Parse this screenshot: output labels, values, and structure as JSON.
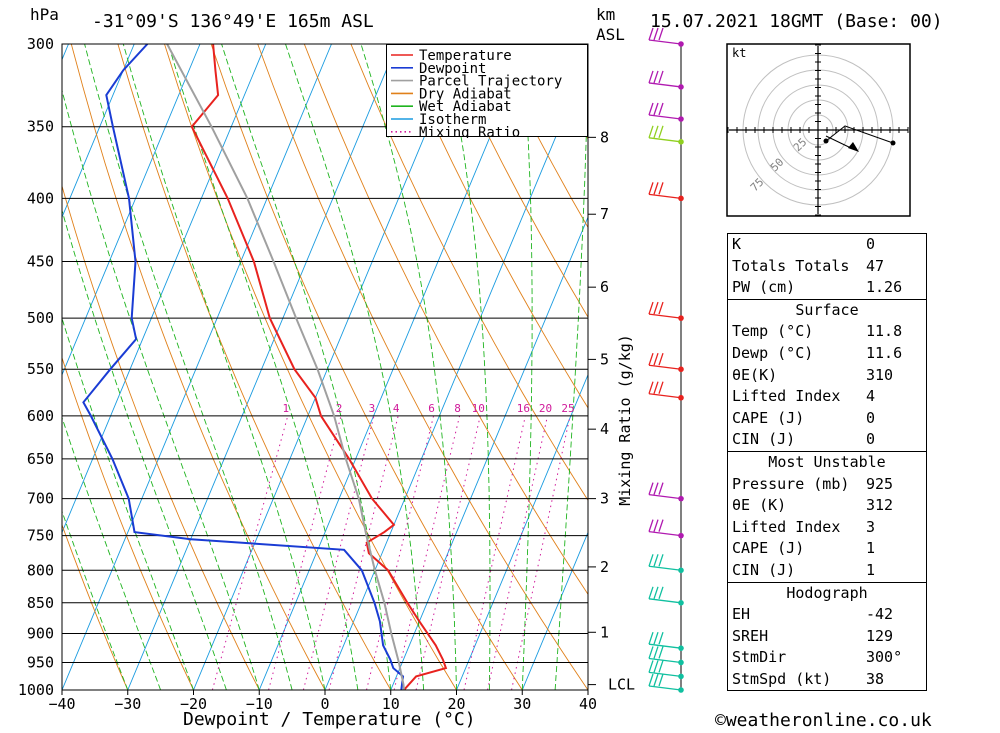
{
  "header": {
    "location": "-31°09'S  136°49'E  165m  ASL",
    "datetime": "15.07.2021  18GMT  (Base: 00)",
    "p_unit": "hPa",
    "km_unit": "km",
    "asl_label": "ASL"
  },
  "footer": {
    "credit": "©weatheronline.co.uk"
  },
  "colors": {
    "temperature": "#e8221e",
    "dewpoint": "#1a3cd4",
    "parcel": "#a0a0a0",
    "dry_adiabat": "#e0801a",
    "wet_adiabat": "#1fb41f",
    "isotherm": "#1a9be0",
    "mixing_ratio": "#d01a9a"
  },
  "chart_data": {
    "type": "line",
    "title": "",
    "xlabel": "Dewpoint / Temperature (°C)",
    "ylabel": "hPa",
    "xlim": [
      -40,
      40
    ],
    "ylim": [
      1000,
      300
    ],
    "x_ticks": [
      -40,
      -30,
      -20,
      -10,
      0,
      10,
      20,
      30,
      40
    ],
    "pressure_levels": [
      300,
      350,
      400,
      450,
      500,
      550,
      600,
      650,
      700,
      750,
      800,
      850,
      900,
      950,
      1000
    ],
    "height_axis": {
      "label": "km",
      "ticks": [
        {
          "km": "8",
          "p": 357
        },
        {
          "km": "7",
          "p": 412
        },
        {
          "km": "6",
          "p": 472
        },
        {
          "km": "5",
          "p": 540
        },
        {
          "km": "4",
          "p": 615
        },
        {
          "km": "3",
          "p": 700
        },
        {
          "km": "2",
          "p": 795
        },
        {
          "km": "1",
          "p": 898
        }
      ],
      "lcl_label": "LCL",
      "lcl_p": 990
    },
    "mixing_ratio_axis_label": "Mixing Ratio (g/kg)",
    "mixing_ratio_lines": [
      "1",
      "2",
      "3",
      "4",
      "6",
      "8",
      "10",
      "16",
      "20",
      "25"
    ],
    "legend": {
      "placement": "top-center",
      "entries": [
        "Temperature",
        "Dewpoint",
        "Parcel Trajectory",
        "Dry Adiabat",
        "Wet Adiabat",
        "Isotherm",
        "Mixing Ratio"
      ]
    },
    "series": [
      {
        "name": "Temperature",
        "points": [
          [
            1000,
            12
          ],
          [
            975,
            13
          ],
          [
            960,
            17
          ],
          [
            945,
            16
          ],
          [
            920,
            14
          ],
          [
            880,
            10
          ],
          [
            850,
            7
          ],
          [
            800,
            2
          ],
          [
            775,
            -2
          ],
          [
            760,
            -3
          ],
          [
            745,
            -1
          ],
          [
            735,
            0
          ],
          [
            700,
            -5
          ],
          [
            650,
            -11
          ],
          [
            600,
            -18
          ],
          [
            580,
            -20
          ],
          [
            550,
            -25
          ],
          [
            500,
            -32
          ],
          [
            450,
            -38
          ],
          [
            400,
            -46
          ],
          [
            350,
            -56
          ],
          [
            330,
            -54
          ],
          [
            315,
            -56
          ],
          [
            300,
            -58
          ]
        ]
      },
      {
        "name": "Dewpoint",
        "points": [
          [
            1000,
            11.6
          ],
          [
            975,
            11
          ],
          [
            960,
            9
          ],
          [
            945,
            8
          ],
          [
            920,
            6
          ],
          [
            880,
            4
          ],
          [
            850,
            2
          ],
          [
            800,
            -2
          ],
          [
            770,
            -6
          ],
          [
            755,
            -30
          ],
          [
            745,
            -39
          ],
          [
            700,
            -42
          ],
          [
            650,
            -47
          ],
          [
            600,
            -53
          ],
          [
            585,
            -55
          ],
          [
            550,
            -53
          ],
          [
            520,
            -51
          ],
          [
            500,
            -53
          ],
          [
            450,
            -56
          ],
          [
            400,
            -61
          ],
          [
            350,
            -68
          ],
          [
            330,
            -71
          ],
          [
            315,
            -70
          ],
          [
            300,
            -68
          ]
        ]
      },
      {
        "name": "Parcel Trajectory",
        "points": [
          [
            1000,
            12
          ],
          [
            990,
            11.6
          ],
          [
            950,
            9.5
          ],
          [
            900,
            6.5
          ],
          [
            850,
            3.5
          ],
          [
            800,
            0
          ],
          [
            750,
            -3.5
          ],
          [
            700,
            -7
          ],
          [
            650,
            -11.5
          ],
          [
            600,
            -16
          ],
          [
            550,
            -21.5
          ],
          [
            500,
            -28
          ],
          [
            450,
            -35
          ],
          [
            400,
            -43
          ],
          [
            350,
            -53
          ],
          [
            300,
            -65
          ]
        ]
      }
    ],
    "wind_barbs_p": [
      300,
      325,
      345,
      360,
      400,
      500,
      550,
      580,
      700,
      750,
      800,
      850,
      925,
      950,
      975,
      1000
    ]
  },
  "hodograph": {
    "unit": "kt",
    "ring_labels": [
      "25",
      "50",
      "75"
    ]
  },
  "indices": {
    "general": [
      {
        "label": "K",
        "value": "0"
      },
      {
        "label": "Totals Totals",
        "value": "47"
      },
      {
        "label": "PW (cm)",
        "value": "1.26"
      }
    ],
    "surface": {
      "title": "Surface",
      "rows": [
        {
          "label": "Temp (°C)",
          "value": "11.8"
        },
        {
          "label": "Dewp (°C)",
          "value": "11.6"
        },
        {
          "label": "θE(K)",
          "value": "310"
        },
        {
          "label": "Lifted Index",
          "value": "4"
        },
        {
          "label": "CAPE (J)",
          "value": "0"
        },
        {
          "label": "CIN (J)",
          "value": "0"
        }
      ]
    },
    "most_unstable": {
      "title": "Most Unstable",
      "rows": [
        {
          "label": "Pressure (mb)",
          "value": "925"
        },
        {
          "label": "θE (K)",
          "value": "312"
        },
        {
          "label": "Lifted Index",
          "value": "3"
        },
        {
          "label": "CAPE (J)",
          "value": "1"
        },
        {
          "label": "CIN (J)",
          "value": "1"
        }
      ]
    },
    "hodograph": {
      "title": "Hodograph",
      "rows": [
        {
          "label": "EH",
          "value": "-42"
        },
        {
          "label": "SREH",
          "value": "129"
        },
        {
          "label": "StmDir",
          "value": "300°"
        },
        {
          "label": "StmSpd (kt)",
          "value": "38"
        }
      ]
    }
  }
}
